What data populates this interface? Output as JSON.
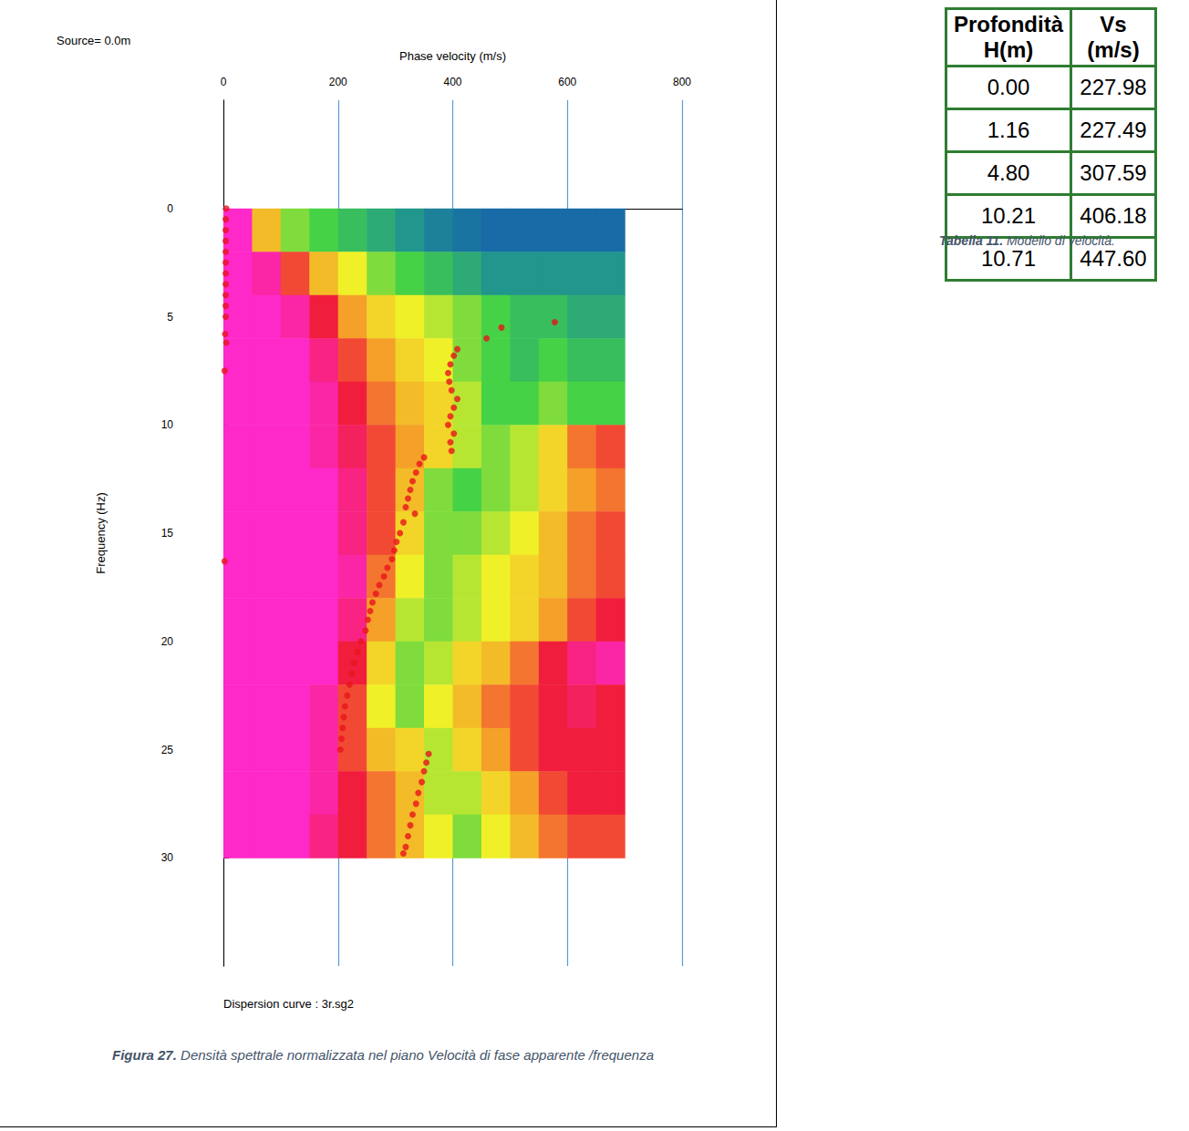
{
  "chart_data": {
    "type": "scatter",
    "x_label": "Phase velocity (m/s)",
    "y_label": "Frequency (Hz)",
    "annotations": [
      "Source= 0.0m",
      "Dispersion curve : 3r.sg2"
    ],
    "xlim": [
      0,
      800
    ],
    "xticks": [
      0,
      200,
      400,
      600,
      800
    ],
    "ylim": [
      -5,
      35
    ],
    "yticks": [
      0,
      5,
      10,
      15,
      20,
      25,
      30
    ],
    "grid": "x",
    "color": "#e8141c",
    "marker": "circle",
    "x": [
      5,
      4,
      4,
      4,
      4,
      4,
      4,
      4,
      4,
      4,
      4,
      3,
      5,
      2,
      2,
      578,
      485,
      459,
      408,
      402,
      396,
      392,
      394,
      398,
      408,
      402,
      396,
      392,
      402,
      396,
      398,
      350,
      342,
      336,
      330,
      326,
      322,
      318,
      334,
      314,
      308,
      302,
      298,
      294,
      286,
      280,
      272,
      266,
      260,
      256,
      252,
      248,
      240,
      234,
      228,
      224,
      220,
      216,
      212,
      210,
      208,
      206,
      204,
      358,
      354,
      350,
      346,
      340,
      336,
      330,
      326,
      322,
      318,
      314
    ],
    "values": [
      0,
      0.5,
      1,
      1.5,
      2,
      2.5,
      3,
      3.5,
      4,
      4.5,
      5,
      5.8,
      6.2,
      7.5,
      16.3,
      5.25,
      5.5,
      6.0,
      6.5,
      6.8,
      7.2,
      7.6,
      8.0,
      8.4,
      8.8,
      9.2,
      9.6,
      10.0,
      10.4,
      10.8,
      11.2,
      11.5,
      11.8,
      12.2,
      12.6,
      13.0,
      13.4,
      13.8,
      14.1,
      14.5,
      15.0,
      15.4,
      15.8,
      16.2,
      16.6,
      17.0,
      17.4,
      17.8,
      18.2,
      18.6,
      19.0,
      19.5,
      20.0,
      20.5,
      21.0,
      21.5,
      22.0,
      22.5,
      23.0,
      23.5,
      24.0,
      24.5,
      25.0,
      25.2,
      25.6,
      26.0,
      26.5,
      27.0,
      27.5,
      28.0,
      28.5,
      29.0,
      29.5,
      29.8
    ],
    "heatmap": {
      "x_edges": [
        0,
        50,
        100,
        150,
        200,
        250,
        300,
        350,
        400,
        450,
        500,
        550,
        600,
        650,
        700
      ],
      "y_edges": [
        0,
        2,
        4,
        6,
        8,
        10,
        12,
        14,
        16,
        18,
        20,
        22,
        24,
        26,
        28,
        30
      ],
      "zlim": [
        0,
        1
      ],
      "values": [
        [
          1,
          0.6,
          0.4,
          0.35,
          0.3,
          0.25,
          0.2,
          0.15,
          0.12,
          0.1,
          0.1,
          0.1,
          0.1,
          0.1
        ],
        [
          1,
          0.95,
          0.75,
          0.6,
          0.5,
          0.4,
          0.35,
          0.3,
          0.25,
          0.2,
          0.2,
          0.2,
          0.2,
          0.2
        ],
        [
          1,
          1,
          0.95,
          0.8,
          0.65,
          0.55,
          0.5,
          0.45,
          0.4,
          0.35,
          0.3,
          0.3,
          0.25,
          0.25
        ],
        [
          1,
          1,
          1,
          0.9,
          0.75,
          0.65,
          0.55,
          0.5,
          0.4,
          0.35,
          0.3,
          0.35,
          0.3,
          0.3
        ],
        [
          1,
          1,
          1,
          0.95,
          0.8,
          0.7,
          0.6,
          0.55,
          0.45,
          0.35,
          0.35,
          0.4,
          0.35,
          0.35
        ],
        [
          1,
          1,
          1,
          0.95,
          0.85,
          0.75,
          0.65,
          0.55,
          0.45,
          0.4,
          0.45,
          0.55,
          0.7,
          0.75
        ],
        [
          1,
          1,
          1,
          1,
          0.9,
          0.75,
          0.6,
          0.4,
          0.35,
          0.4,
          0.45,
          0.55,
          0.65,
          0.7
        ],
        [
          1,
          1,
          1,
          1,
          0.9,
          0.75,
          0.55,
          0.4,
          0.4,
          0.45,
          0.5,
          0.6,
          0.7,
          0.75
        ],
        [
          1,
          1,
          1,
          1,
          0.95,
          0.7,
          0.5,
          0.4,
          0.45,
          0.5,
          0.55,
          0.6,
          0.7,
          0.75
        ],
        [
          1,
          1,
          1,
          1,
          0.9,
          0.65,
          0.45,
          0.4,
          0.45,
          0.5,
          0.55,
          0.65,
          0.75,
          0.8
        ],
        [
          1,
          1,
          1,
          1,
          0.8,
          0.55,
          0.4,
          0.45,
          0.55,
          0.6,
          0.7,
          0.8,
          0.9,
          0.95
        ],
        [
          1,
          1,
          1,
          0.95,
          0.75,
          0.5,
          0.4,
          0.5,
          0.6,
          0.7,
          0.75,
          0.8,
          0.85,
          0.8
        ],
        [
          1,
          1,
          1,
          0.95,
          0.75,
          0.6,
          0.55,
          0.45,
          0.55,
          0.65,
          0.75,
          0.8,
          0.8,
          0.8
        ],
        [
          1,
          1,
          1,
          0.95,
          0.8,
          0.7,
          0.6,
          0.45,
          0.45,
          0.55,
          0.65,
          0.75,
          0.8,
          0.8
        ],
        [
          1,
          1,
          1,
          0.9,
          0.8,
          0.7,
          0.6,
          0.5,
          0.4,
          0.5,
          0.6,
          0.7,
          0.75,
          0.75
        ]
      ]
    }
  },
  "figure_caption": {
    "label": "Figura 27.",
    "text": "Densità spettrale normalizzata nel piano Velocità di fase apparente /frequenza"
  },
  "table": {
    "headers": [
      [
        "Profondità",
        "H(m)"
      ],
      [
        "Vs",
        "(m/s)"
      ]
    ],
    "rows": [
      [
        "0.00",
        "227.98"
      ],
      [
        "1.16",
        "227.49"
      ],
      [
        "4.80",
        "307.59"
      ],
      [
        "10.21",
        "406.18"
      ],
      [
        "10.71",
        "447.60"
      ]
    ],
    "caption": {
      "label": "Tabella 11.",
      "text": "Modello di velocità."
    }
  }
}
